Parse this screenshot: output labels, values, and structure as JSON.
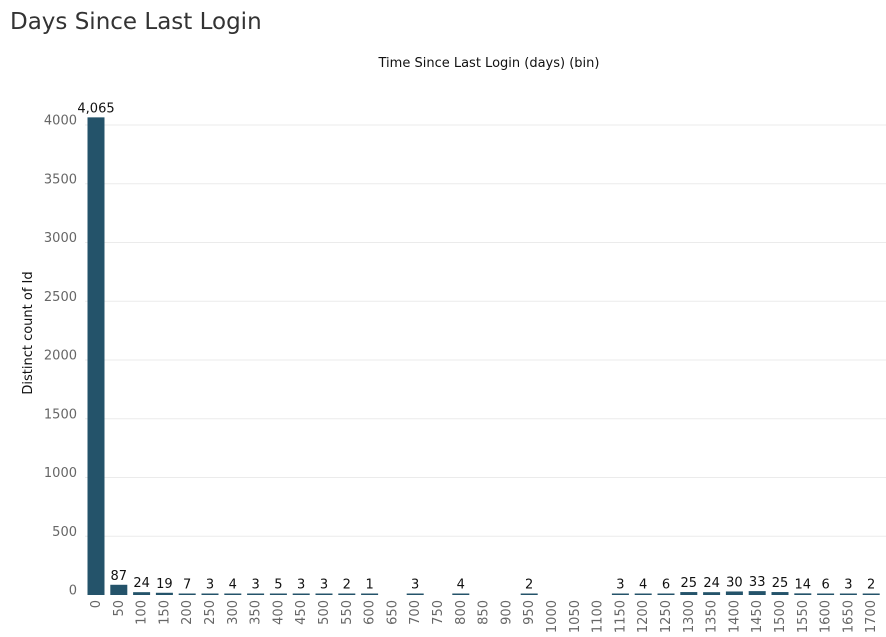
{
  "page_title": "Days Since Last Login",
  "chart_data": {
    "type": "bar",
    "title": "Time Since Last Login (days) (bin)",
    "xlabel": "Time Since Last Login (days) (bin)",
    "ylabel": "Distinct count of Id",
    "ylim": [
      0,
      4300
    ],
    "yticks": [
      0,
      500,
      1000,
      1500,
      2000,
      2500,
      3000,
      3500,
      4000
    ],
    "grid": true,
    "bar_color": "#24536a",
    "categories": [
      "0",
      "50",
      "100",
      "150",
      "200",
      "250",
      "300",
      "350",
      "400",
      "450",
      "500",
      "550",
      "600",
      "650",
      "700",
      "750",
      "800",
      "850",
      "900",
      "950",
      "1000",
      "1050",
      "1100",
      "1150",
      "1200",
      "1250",
      "1300",
      "1350",
      "1400",
      "1450",
      "1500",
      "1550",
      "1600",
      "1650",
      "1700"
    ],
    "values": [
      4065,
      87,
      24,
      19,
      7,
      3,
      4,
      3,
      5,
      3,
      3,
      2,
      1,
      null,
      3,
      null,
      4,
      null,
      null,
      2,
      null,
      null,
      null,
      3,
      4,
      6,
      25,
      24,
      30,
      33,
      25,
      14,
      6,
      3,
      2
    ],
    "data_labels": [
      "4,065",
      "87",
      "24",
      "19",
      "7",
      "3",
      "4",
      "3",
      "5",
      "3",
      "3",
      "2",
      "1",
      "",
      "3",
      "",
      "4",
      "",
      "",
      "2",
      "",
      "",
      "",
      "3",
      "4",
      "6",
      "25",
      "24",
      "30",
      "33",
      "25",
      "14",
      "6",
      "3",
      "2"
    ]
  }
}
